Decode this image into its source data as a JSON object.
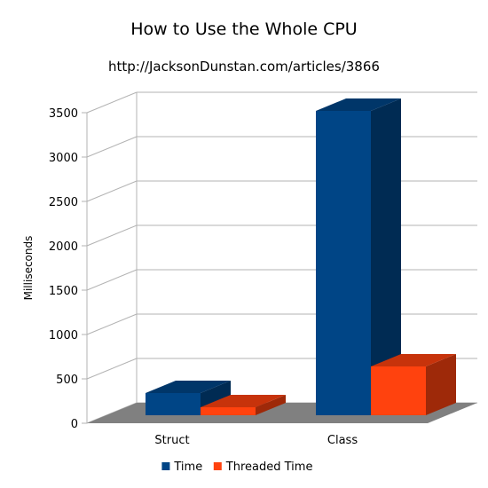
{
  "chart_data": {
    "type": "bar",
    "style": "3d-clustered-column",
    "title": "How to Use the Whole CPU",
    "subtitle": "http://JacksonDunstan.com/articles/3866",
    "xlabel": "",
    "ylabel": "Milliseconds",
    "categories": [
      "Struct",
      "Class"
    ],
    "series": [
      {
        "name": "Time",
        "color": "#004586",
        "values": [
          250,
          3430
        ]
      },
      {
        "name": "Threaded Time",
        "color": "#ff420e",
        "values": [
          90,
          550
        ]
      }
    ],
    "ylim": [
      0,
      3500
    ],
    "yticks": [
      0,
      500,
      1000,
      1500,
      2000,
      2500,
      3000,
      3500
    ],
    "grid": true,
    "legend": "bottom"
  }
}
